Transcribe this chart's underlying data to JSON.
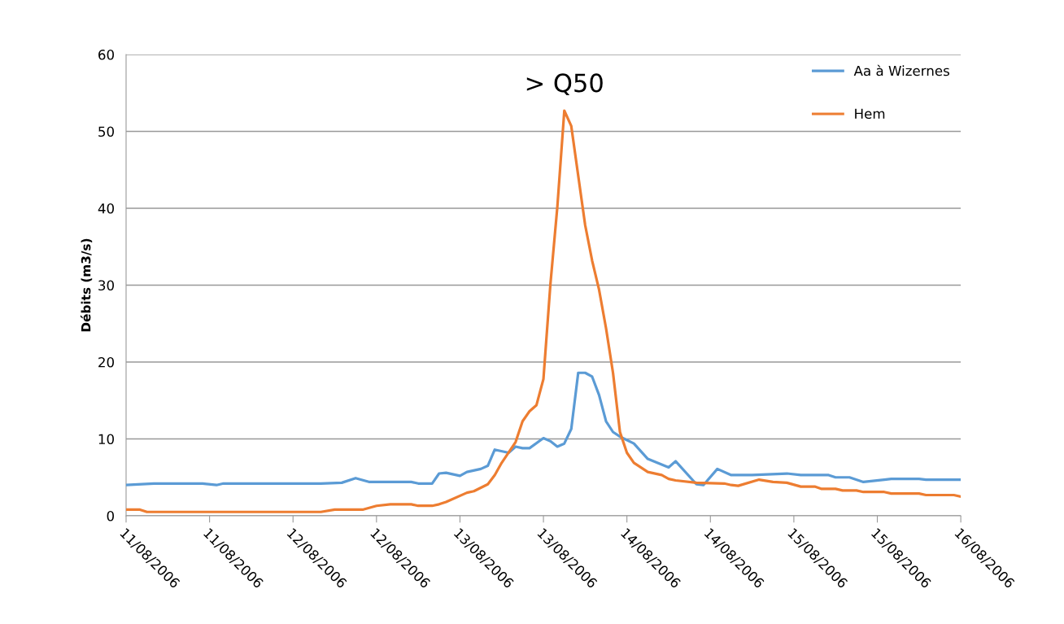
{
  "chart_data": {
    "type": "line",
    "ylabel": "Débits (m3/s)",
    "xlim": [
      "2006-08-11T00:00",
      "2006-08-16T00:00"
    ],
    "xticks": [
      {
        "value": "2006-08-11T00:00",
        "label": "11/08/2006"
      },
      {
        "value": "2006-08-11T12:00",
        "label": "11/08/2006"
      },
      {
        "value": "2006-08-12T00:00",
        "label": "12/08/2006"
      },
      {
        "value": "2006-08-12T12:00",
        "label": "12/08/2006"
      },
      {
        "value": "2006-08-13T00:00",
        "label": "13/08/2006"
      },
      {
        "value": "2006-08-13T12:00",
        "label": "13/08/2006"
      },
      {
        "value": "2006-08-14T00:00",
        "label": "14/08/2006"
      },
      {
        "value": "2006-08-14T12:00",
        "label": "14/08/2006"
      },
      {
        "value": "2006-08-15T00:00",
        "label": "15/08/2006"
      },
      {
        "value": "2006-08-15T12:00",
        "label": "15/08/2006"
      },
      {
        "value": "2006-08-16T00:00",
        "label": "16/08/2006"
      }
    ],
    "ylim": [
      0,
      60
    ],
    "yticks": [
      0,
      10,
      20,
      30,
      40,
      50,
      60
    ],
    "grid": "y",
    "legend": "top right",
    "marker": "none",
    "line_style": "solid",
    "annotations": [
      {
        "text": "> Q50",
        "x": "2006-08-13T15:00",
        "y": 52.7
      }
    ],
    "series": [
      {
        "name": "Aa à Wizernes",
        "color": "#5b9bd5",
        "x": [
          "2006-08-11T00:00",
          "2006-08-11T04:00",
          "2006-08-11T11:00",
          "2006-08-11T13:00",
          "2006-08-11T14:00",
          "2006-08-12T04:00",
          "2006-08-12T07:00",
          "2006-08-12T09:00",
          "2006-08-12T11:00",
          "2006-08-12T17:00",
          "2006-08-12T18:00",
          "2006-08-12T20:00",
          "2006-08-12T21:00",
          "2006-08-12T22:00",
          "2006-08-13T00:00",
          "2006-08-13T01:00",
          "2006-08-13T03:00",
          "2006-08-13T04:00",
          "2006-08-13T05:00",
          "2006-08-13T07:00",
          "2006-08-13T08:00",
          "2006-08-13T09:00",
          "2006-08-13T10:00",
          "2006-08-13T12:00",
          "2006-08-13T13:00",
          "2006-08-13T14:00",
          "2006-08-13T15:00",
          "2006-08-13T16:00",
          "2006-08-13T17:00",
          "2006-08-13T18:00",
          "2006-08-13T19:00",
          "2006-08-13T20:00",
          "2006-08-13T21:00",
          "2006-08-13T22:00",
          "2006-08-13T23:00",
          "2006-08-14T01:00",
          "2006-08-14T03:00",
          "2006-08-14T06:00",
          "2006-08-14T07:00",
          "2006-08-14T10:00",
          "2006-08-14T11:00",
          "2006-08-14T13:00",
          "2006-08-14T15:00",
          "2006-08-14T18:00",
          "2006-08-14T23:00",
          "2006-08-15T01:00",
          "2006-08-15T05:00",
          "2006-08-15T06:00",
          "2006-08-15T08:00",
          "2006-08-15T10:00",
          "2006-08-15T13:00",
          "2006-08-15T14:00",
          "2006-08-15T18:00",
          "2006-08-15T19:00",
          "2006-08-16T00:00"
        ],
        "values": [
          4.0,
          4.2,
          4.2,
          4.0,
          4.2,
          4.2,
          4.3,
          4.9,
          4.4,
          4.4,
          4.2,
          4.2,
          5.5,
          5.6,
          5.2,
          5.7,
          6.1,
          6.5,
          8.6,
          8.2,
          9.0,
          8.8,
          8.8,
          10.1,
          9.7,
          9.0,
          9.4,
          11.3,
          18.6,
          18.6,
          18.1,
          15.7,
          12.3,
          10.9,
          10.3,
          9.4,
          7.4,
          6.3,
          7.1,
          4.1,
          4.0,
          6.1,
          5.3,
          5.3,
          5.5,
          5.3,
          5.3,
          5.0,
          5.0,
          4.4,
          4.7,
          4.8,
          4.8,
          4.7,
          4.7
        ]
      },
      {
        "name": "Hem",
        "color": "#ed7d31",
        "x": [
          "2006-08-11T00:00",
          "2006-08-11T02:00",
          "2006-08-11T03:00",
          "2006-08-12T04:00",
          "2006-08-12T06:00",
          "2006-08-12T10:00",
          "2006-08-12T12:00",
          "2006-08-12T14:00",
          "2006-08-12T17:00",
          "2006-08-12T18:00",
          "2006-08-12T20:00",
          "2006-08-12T21:00",
          "2006-08-12T22:00",
          "2006-08-13T01:00",
          "2006-08-13T02:00",
          "2006-08-13T04:00",
          "2006-08-13T05:00",
          "2006-08-13T06:00",
          "2006-08-13T08:00",
          "2006-08-13T09:00",
          "2006-08-13T10:00",
          "2006-08-13T11:00",
          "2006-08-13T12:00",
          "2006-08-13T13:00",
          "2006-08-13T14:00",
          "2006-08-13T15:00",
          "2006-08-13T16:00",
          "2006-08-13T18:00",
          "2006-08-13T19:00",
          "2006-08-13T20:00",
          "2006-08-13T21:00",
          "2006-08-13T22:00",
          "2006-08-13T23:00",
          "2006-08-14T00:00",
          "2006-08-14T01:00",
          "2006-08-14T03:00",
          "2006-08-14T05:00",
          "2006-08-14T06:00",
          "2006-08-14T07:00",
          "2006-08-14T10:00",
          "2006-08-14T14:00",
          "2006-08-14T15:00",
          "2006-08-14T16:00",
          "2006-08-14T19:00",
          "2006-08-14T21:00",
          "2006-08-14T23:00",
          "2006-08-15T01:00",
          "2006-08-15T03:00",
          "2006-08-15T04:00",
          "2006-08-15T06:00",
          "2006-08-15T07:00",
          "2006-08-15T09:00",
          "2006-08-15T10:00",
          "2006-08-15T13:00",
          "2006-08-15T14:00",
          "2006-08-15T18:00",
          "2006-08-15T19:00",
          "2006-08-15T23:00",
          "2006-08-16T00:00"
        ],
        "values": [
          0.8,
          0.8,
          0.5,
          0.5,
          0.8,
          0.8,
          1.3,
          1.5,
          1.5,
          1.3,
          1.3,
          1.5,
          1.8,
          3.0,
          3.2,
          4.1,
          5.3,
          6.9,
          9.6,
          12.3,
          13.6,
          14.4,
          17.8,
          30.1,
          40.2,
          52.7,
          50.7,
          37.8,
          33.2,
          29.4,
          24.4,
          18.6,
          10.9,
          8.2,
          6.9,
          5.7,
          5.3,
          4.8,
          4.6,
          4.3,
          4.2,
          4.0,
          3.9,
          4.7,
          4.4,
          4.3,
          3.8,
          3.8,
          3.5,
          3.5,
          3.3,
          3.3,
          3.1,
          3.1,
          2.9,
          2.9,
          2.7,
          2.7,
          2.5
        ]
      }
    ]
  }
}
